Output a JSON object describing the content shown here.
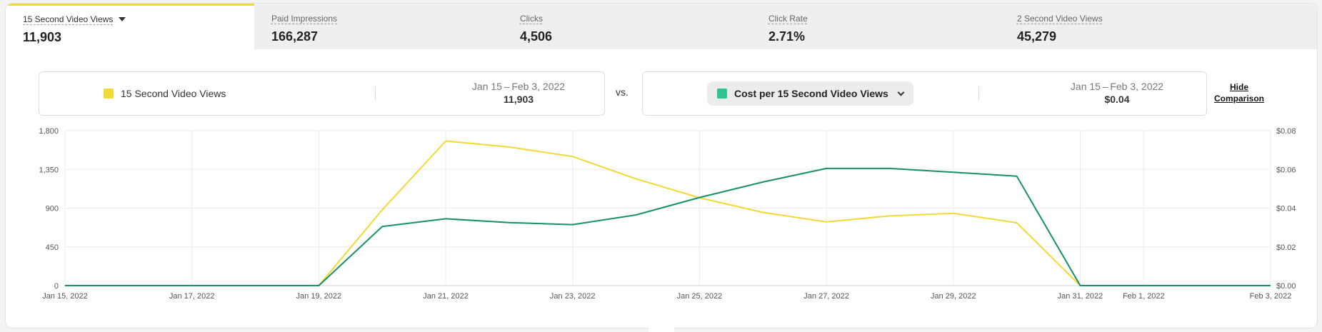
{
  "tabs": [
    {
      "label": "15 Second Video Views",
      "value": "11,903",
      "active": true
    },
    {
      "label": "Paid Impressions",
      "value": "166,287",
      "active": false
    },
    {
      "label": "Clicks",
      "value": "4,506",
      "active": false
    },
    {
      "label": "Click Rate",
      "value": "2.71%",
      "active": false
    },
    {
      "label": "2 Second Video Views",
      "value": "45,279",
      "active": false
    }
  ],
  "comparison": {
    "primary": {
      "metric": "15 Second Video Views",
      "dates": "Jan 15 – Feb 3, 2022",
      "value": "11,903",
      "color": "#f2d935"
    },
    "vs_label": "vs.",
    "secondary": {
      "metric": "Cost per 15 Second Video Views",
      "dates": "Jan 15 – Feb 3, 2022",
      "value": "$0.04",
      "color": "#2fc48d"
    },
    "hide_line1": "Hide",
    "hide_line2": "Comparison"
  },
  "chart_data": {
    "type": "line",
    "x": [
      "2022-01-15",
      "2022-01-16",
      "2022-01-17",
      "2022-01-18",
      "2022-01-19",
      "2022-01-20",
      "2022-01-21",
      "2022-01-22",
      "2022-01-23",
      "2022-01-24",
      "2022-01-25",
      "2022-01-26",
      "2022-01-27",
      "2022-01-28",
      "2022-01-29",
      "2022-01-30",
      "2022-01-31",
      "2022-02-01",
      "2022-02-02",
      "2022-02-03"
    ],
    "x_tick_labels": [
      {
        "date": "2022-01-15",
        "label": "Jan 15, 2022"
      },
      {
        "date": "2022-01-17",
        "label": "Jan 17, 2022"
      },
      {
        "date": "2022-01-19",
        "label": "Jan 19, 2022"
      },
      {
        "date": "2022-01-21",
        "label": "Jan 21, 2022"
      },
      {
        "date": "2022-01-23",
        "label": "Jan 23, 2022"
      },
      {
        "date": "2022-01-25",
        "label": "Jan 25, 2022"
      },
      {
        "date": "2022-01-27",
        "label": "Jan 27, 2022"
      },
      {
        "date": "2022-01-29",
        "label": "Jan 29, 2022"
      },
      {
        "date": "2022-01-31",
        "label": "Jan 31, 2022"
      },
      {
        "date": "2022-02-01",
        "label": "Feb 1, 2022"
      },
      {
        "date": "2022-02-03",
        "label": "Feb 3, 2022"
      }
    ],
    "y_left": {
      "ticks": [
        0,
        450,
        900,
        1350,
        1800
      ],
      "tick_labels": [
        "0",
        "450",
        "900",
        "1,350",
        "1,800"
      ],
      "ylim": [
        0,
        1800
      ]
    },
    "y_right": {
      "ticks": [
        0,
        0.02,
        0.04,
        0.06,
        0.08
      ],
      "tick_labels": [
        "$0.00",
        "$0.02",
        "$0.04",
        "$0.06",
        "$0.08"
      ],
      "ylim": [
        0,
        0.08
      ]
    },
    "grid": true,
    "series": [
      {
        "name": "15 Second Video Views",
        "axis": "left",
        "color": "#f2d935",
        "values": [
          0,
          0,
          0,
          0,
          0,
          880,
          1680,
          1610,
          1500,
          1240,
          1020,
          850,
          740,
          810,
          840,
          730,
          0,
          0,
          0,
          0
        ]
      },
      {
        "name": "Cost per 15 Second Video Views",
        "axis": "right",
        "color": "#17906a",
        "values": [
          0,
          0,
          0,
          0,
          0,
          0.0305,
          0.0345,
          0.0325,
          0.0315,
          0.0365,
          0.0455,
          0.0535,
          0.0605,
          0.0605,
          0.0585,
          0.0565,
          0,
          0,
          0,
          0
        ]
      }
    ]
  }
}
